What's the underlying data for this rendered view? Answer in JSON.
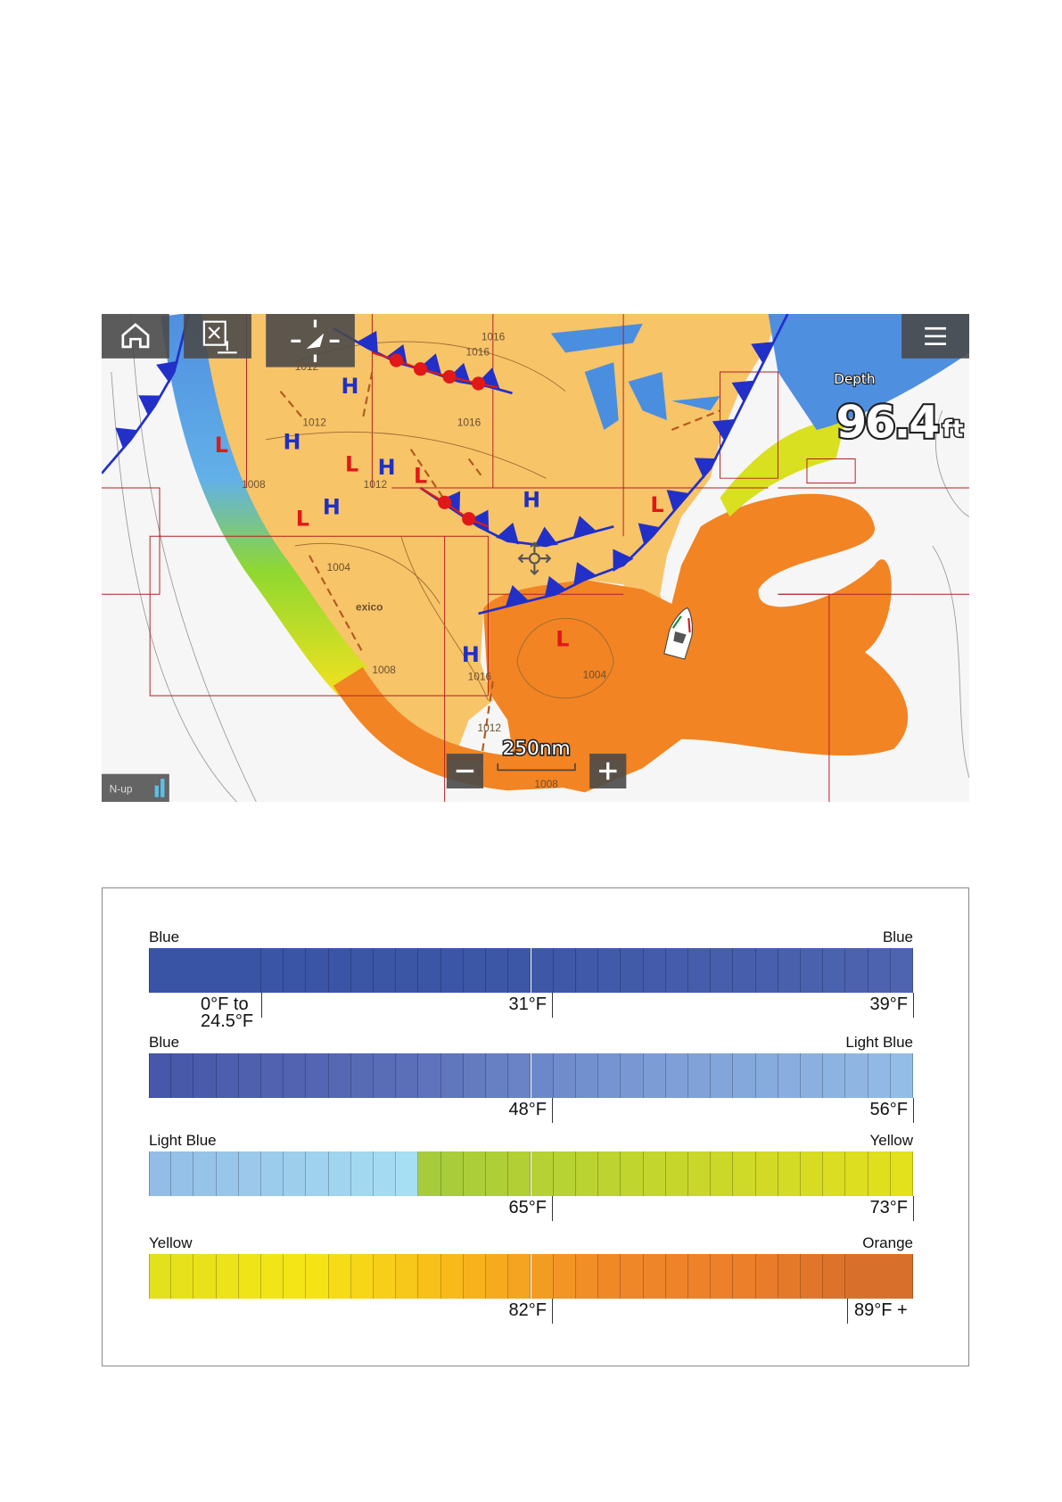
{
  "map": {
    "depth_label": "Depth",
    "depth_value": "96.4",
    "depth_unit": "ft",
    "scale": "250nm",
    "orientation": "N-up",
    "pressure_labels": [
      "H",
      "H",
      "H",
      "H",
      "H",
      "H",
      "L",
      "L",
      "L",
      "L",
      "L",
      "L"
    ],
    "isobar_labels": [
      "1016",
      "1016",
      "1012",
      "1012",
      "1016",
      "1008",
      "1012",
      "1004",
      "1008",
      "1016",
      "1004",
      "1012",
      "1008",
      "exico"
    ]
  },
  "legend": {
    "rows": [
      {
        "left": "Blue",
        "right": "Blue",
        "colors": [
          [
            "#3a54a5",
            "#3d57a7",
            "#4e64b0"
          ]
        ],
        "ticks": [
          "0°F to 24.5°F",
          "31°F",
          "39°F"
        ]
      },
      {
        "left": "Blue",
        "right": "Light Blue",
        "colors": [
          [
            "#4757a9",
            "#5b6fb8",
            "#7c9cd6",
            "#93bce6"
          ]
        ],
        "ticks": [
          "48°F",
          "56°F"
        ]
      },
      {
        "left": "Light Blue",
        "right": "Yellow",
        "colors": [
          [
            "#93bde6",
            "#a6def3"
          ],
          [
            "#a6cc3c",
            "#e3e01c"
          ]
        ],
        "ticks": [
          "65°F",
          "73°F"
        ]
      },
      {
        "left": "Yellow",
        "right": "Orange",
        "colors": [
          [
            "#e3e01c",
            "#f6e616",
            "#f8b81a",
            "#f08828",
            "#ec7e2a",
            "#d06a2c"
          ]
        ],
        "ticks": [
          "82°F",
          "89°F +"
        ]
      }
    ]
  }
}
